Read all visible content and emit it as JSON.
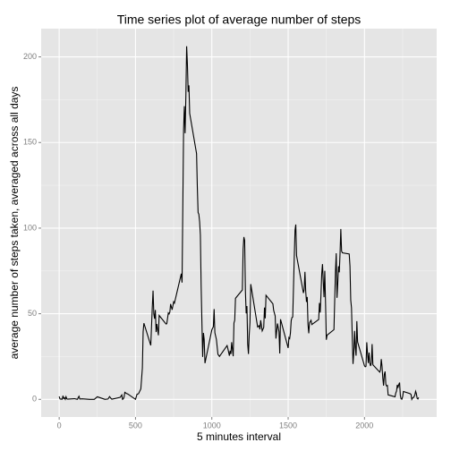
{
  "chart_data": {
    "type": "line",
    "title": "Time series plot of average number of steps",
    "xlabel": "5 minutes interval",
    "ylabel": "average number of steps taken, averaged across all days",
    "x": [
      0,
      5,
      10,
      15,
      20,
      25,
      30,
      35,
      40,
      45,
      50,
      55,
      100,
      110,
      120,
      125,
      130,
      135,
      150,
      200,
      230,
      250,
      300,
      320,
      330,
      340,
      345,
      400,
      410,
      415,
      420,
      425,
      430,
      440,
      450,
      500,
      510,
      520,
      535,
      545,
      550,
      555,
      600,
      610,
      615,
      620,
      625,
      630,
      635,
      640,
      650,
      655,
      700,
      705,
      715,
      720,
      725,
      730,
      740,
      750,
      755,
      800,
      805,
      815,
      820,
      825,
      830,
      835,
      840,
      845,
      850,
      855,
      900,
      905,
      910,
      915,
      920,
      925,
      930,
      935,
      940,
      945,
      950,
      955,
      1000,
      1010,
      1015,
      1020,
      1030,
      1040,
      1050,
      1100,
      1105,
      1115,
      1120,
      1125,
      1130,
      1140,
      1145,
      1150,
      1155,
      1200,
      1205,
      1210,
      1215,
      1220,
      1225,
      1230,
      1235,
      1240,
      1245,
      1250,
      1255,
      1300,
      1310,
      1315,
      1320,
      1330,
      1340,
      1345,
      1350,
      1355,
      1400,
      1405,
      1415,
      1420,
      1430,
      1440,
      1445,
      1450,
      1500,
      1505,
      1510,
      1515,
      1520,
      1525,
      1530,
      1535,
      1540,
      1545,
      1550,
      1555,
      1600,
      1605,
      1610,
      1615,
      1620,
      1625,
      1630,
      1635,
      1640,
      1645,
      1650,
      1655,
      1700,
      1705,
      1710,
      1715,
      1720,
      1725,
      1730,
      1735,
      1740,
      1745,
      1750,
      1755,
      1800,
      1805,
      1810,
      1815,
      1820,
      1825,
      1830,
      1835,
      1840,
      1845,
      1850,
      1855,
      1900,
      1905,
      1910,
      1915,
      1920,
      1925,
      1930,
      1935,
      1940,
      1945,
      1950,
      1955,
      2000,
      2005,
      2010,
      2015,
      2020,
      2025,
      2030,
      2035,
      2040,
      2045,
      2050,
      2055,
      2100,
      2105,
      2110,
      2115,
      2120,
      2125,
      2130,
      2135,
      2140,
      2145,
      2150,
      2155,
      2200,
      2205,
      2210,
      2215,
      2220,
      2225,
      2230,
      2235,
      2240,
      2245,
      2250,
      2255,
      2300,
      2305,
      2310,
      2315,
      2320,
      2325,
      2330,
      2335,
      2340,
      2345,
      2350,
      2355
    ],
    "series": [
      {
        "color": "#000000",
        "values": [
          1.7,
          0.3,
          0.1,
          0.2,
          0.1,
          2.1,
          0.5,
          0.9,
          0,
          1.5,
          0.3,
          0.1,
          0.4,
          0.2,
          0,
          1.1,
          1.8,
          0.2,
          0.3,
          0,
          0,
          1.5,
          0,
          0.2,
          1.6,
          0.5,
          0.1,
          1.2,
          2.6,
          0,
          0.3,
          1.3,
          4.1,
          3.5,
          3.1,
          0,
          3.0,
          3.3,
          6.1,
          18.3,
          39.5,
          44.5,
          31.5,
          53.8,
          63.5,
          49.9,
          47.1,
          52.2,
          39.3,
          44.0,
          37.4,
          49.0,
          44.0,
          44.2,
          50.5,
          49.9,
          50.9,
          55.7,
          52.3,
          57.0,
          56.2,
          73.4,
          68.2,
          157.5,
          171.2,
          155.4,
          177.3,
          206.2,
          195.9,
          179.6,
          183.4,
          167.0,
          143.5,
          124.0,
          109.1,
          108.1,
          103.7,
          96.0,
          66.2,
          45.2,
          24.8,
          38.8,
          35.0,
          21.1,
          40.6,
          42.4,
          52.7,
          38.9,
          35.0,
          26.3,
          25.1,
          31.4,
          29.7,
          25.5,
          28.4,
          26.5,
          33.4,
          25.2,
          44.6,
          46.2,
          59.0,
          63.9,
          87.7,
          94.8,
          92.8,
          63.4,
          50.2,
          54.5,
          32.4,
          26.5,
          37.7,
          45.1,
          67.3,
          42.3,
          43.0,
          40.9,
          46.2,
          40.0,
          42.0,
          53.6,
          47.3,
          60.8,
          55.8,
          52.0,
          48.7,
          35.5,
          44.3,
          39.5,
          26.8,
          46.8,
          30.0,
          36.1,
          35.5,
          38.8,
          46.0,
          47.8,
          48.1,
          65.3,
          82.9,
          98.7,
          102.1,
          84.0,
          62.1,
          64.1,
          74.5,
          63.2,
          56.9,
          59.8,
          43.9,
          38.6,
          44.7,
          45.5,
          46.2,
          43.7,
          46.6,
          56.3,
          50.7,
          61.2,
          73.4,
          79.0,
          68.9,
          59.7,
          75.1,
          56.5,
          34.8,
          37.5,
          40.7,
          58.0,
          74.7,
          85.3,
          59.3,
          67.8,
          77.7,
          74.2,
          85.3,
          99.5,
          86.6,
          85.6,
          84.9,
          77.8,
          58.0,
          53.4,
          36.3,
          20.7,
          27.4,
          40.0,
          30.2,
          25.5,
          45.7,
          33.5,
          19.6,
          19.0,
          19.3,
          33.3,
          26.8,
          21.2,
          27.3,
          21.3,
          19.5,
          21.3,
          32.3,
          20.2,
          15.9,
          17.2,
          23.5,
          19.2,
          12.5,
          8.0,
          14.7,
          16.3,
          8.7,
          7.8,
          8.1,
          2.6,
          1.5,
          3.7,
          4.8,
          8.5,
          7.1,
          8.7,
          9.8,
          2.2,
          0.3,
          0.1,
          1.6,
          4.6,
          3.3,
          2.8,
          0,
          0.8,
          1.0,
          1.6,
          2.6,
          4.7,
          3.3,
          0.6,
          0.2,
          1.1
        ]
      }
    ],
    "xlim": [
      -118,
      2473
    ],
    "xticks": [
      0,
      500,
      1000,
      1500,
      2000
    ],
    "xminor": [
      250,
      750,
      1250,
      1750,
      2250
    ],
    "ylim": [
      -10.3,
      216.5
    ],
    "yticks": [
      0,
      50,
      100,
      150,
      200
    ],
    "yminor": [
      25,
      75,
      125,
      175
    ],
    "grid": true
  }
}
